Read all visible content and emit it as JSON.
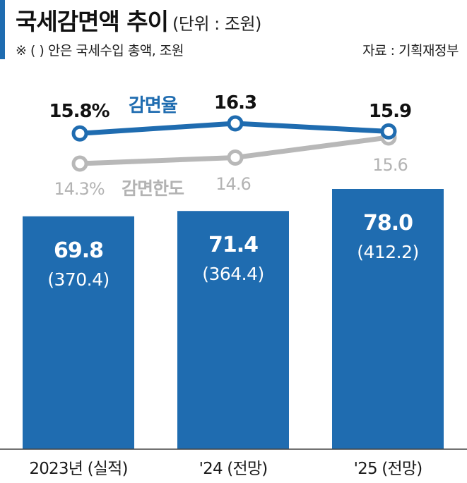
{
  "header": {
    "title": "국세감면액 추이",
    "unit": "(단위 : 조원)",
    "note": "※ (   ) 안은 국세수입 총액, 조원",
    "source": "자료 : 기획재정부"
  },
  "chart_data": {
    "type": "bar",
    "categories": [
      "2023년 (실적)",
      "'24 (전망)",
      "'25 (전망)"
    ],
    "values": [
      69.8,
      71.4,
      78.0
    ],
    "value_labels": [
      "69.8",
      "71.4",
      "78.0"
    ],
    "secondary_labels": [
      "(370.4)",
      "(364.4)",
      "(412.2)"
    ],
    "ylim": [
      0,
      78.0
    ],
    "lines": [
      {
        "name": "감면율",
        "values": [
          15.8,
          16.3,
          15.9
        ],
        "labels": [
          "15.8%",
          "16.3",
          "15.9"
        ],
        "color": "#1f6cb0"
      },
      {
        "name": "감면한도",
        "values": [
          14.3,
          14.6,
          15.6
        ],
        "labels": [
          "14.3%",
          "14.6",
          "15.6"
        ],
        "color": "#b8b8b8"
      }
    ],
    "bar_color": "#1f6cb0",
    "legend": "inline-labels"
  }
}
